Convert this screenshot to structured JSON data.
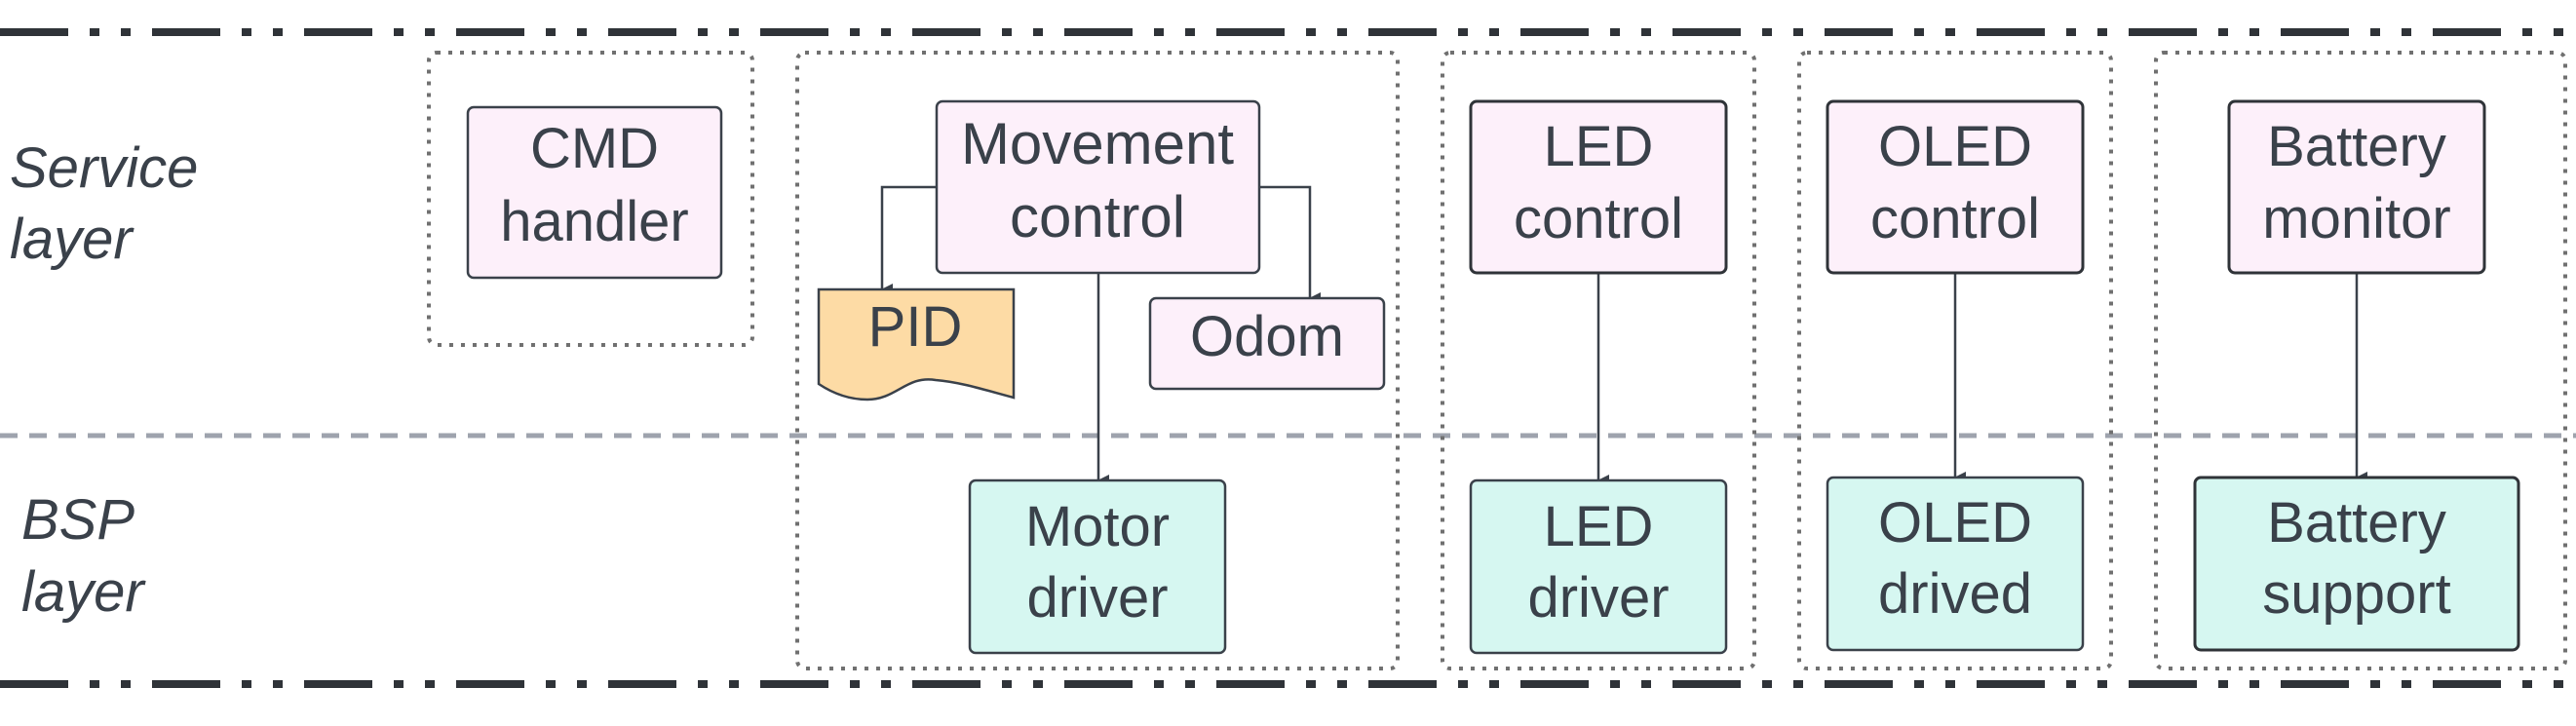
{
  "layers": {
    "service": {
      "line1": "Service",
      "line2": "layer"
    },
    "bsp": {
      "line1": "BSP",
      "line2": "layer"
    }
  },
  "nodes": {
    "cmd_handler": {
      "line1": "CMD",
      "line2": "handler"
    },
    "movement_control": {
      "line1": "Movement",
      "line2": "control"
    },
    "pid": {
      "label": "PID"
    },
    "odom": {
      "label": "Odom"
    },
    "motor_driver": {
      "line1": "Motor",
      "line2": "driver"
    },
    "led_control": {
      "line1": "LED",
      "line2": "control"
    },
    "led_driver": {
      "line1": "LED",
      "line2": "driver"
    },
    "oled_control": {
      "line1": "OLED",
      "line2": "control"
    },
    "oled_drived": {
      "line1": "OLED",
      "line2": "drived"
    },
    "battery_monitor": {
      "line1": "Battery",
      "line2": "monitor"
    },
    "battery_support": {
      "line1": "Battery",
      "line2": "support"
    }
  },
  "colors": {
    "service_fill": "#fdf0fa",
    "bsp_fill": "#d6f7f1",
    "pid_fill": "#fddba5",
    "text": "#3a414a",
    "border": "#3a414a",
    "dotted_group": "#707070",
    "layer_divider": "#9ea3ad",
    "rail": "#2f3338"
  }
}
